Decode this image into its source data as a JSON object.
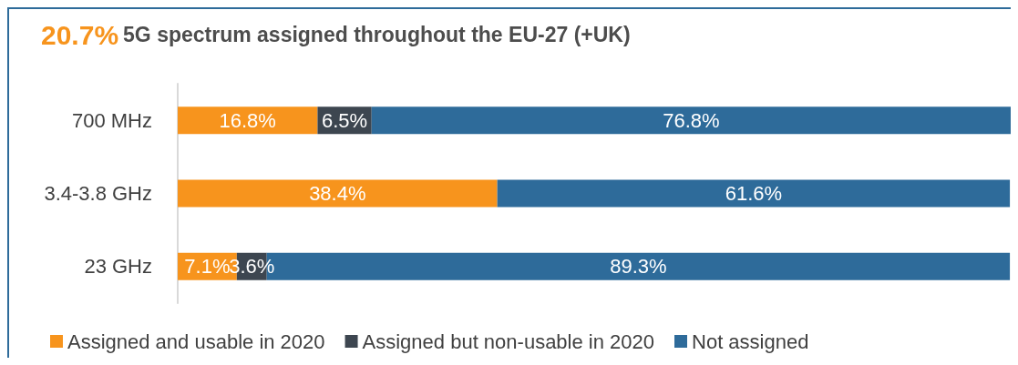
{
  "chart_data": {
    "type": "bar",
    "orientation": "horizontal",
    "stacked": true,
    "title": "5G spectrum assigned throughout the EU-27 (+UK)",
    "annotations": [
      "20.7%"
    ],
    "categories": [
      "700 MHz",
      "3.4-3.8 GHz",
      "23 GHz"
    ],
    "series": [
      {
        "name": "Assigned and usable in 2020",
        "color": "#f7941d",
        "values": [
          16.8,
          38.4,
          7.1
        ],
        "value_labels": [
          "16.8%",
          "38.4%",
          "7.1%"
        ]
      },
      {
        "name": "Assigned but non-usable in 2020",
        "color": "#3d4650",
        "values": [
          6.5,
          0,
          3.6
        ],
        "value_labels": [
          "6.5%",
          null,
          "3.6%"
        ]
      },
      {
        "name": "Not assigned",
        "color": "#2e6b9a",
        "values": [
          76.8,
          61.6,
          89.3
        ],
        "value_labels": [
          "76.8%",
          "61.6%",
          "89.3%"
        ]
      }
    ],
    "legend": "bottom",
    "grid": false
  }
}
